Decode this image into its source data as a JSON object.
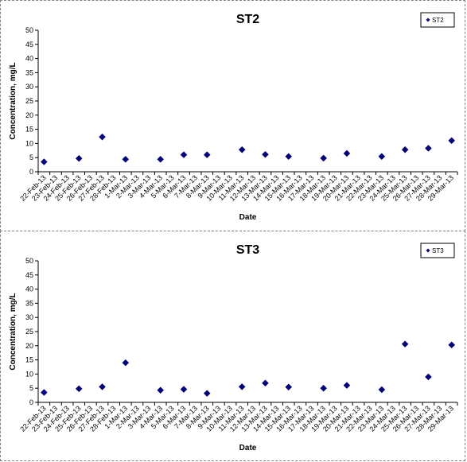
{
  "chart_data": [
    {
      "type": "scatter",
      "title": "ST2",
      "xlabel": "Date",
      "ylabel": "Concentration, mg/L",
      "ylim": [
        0,
        50
      ],
      "yticks": [
        "0",
        "5",
        "10",
        "15",
        "20",
        "25",
        "30",
        "35",
        "40",
        "45",
        "50"
      ],
      "grid": false,
      "legend_position": "top-right",
      "marker_color": "#000080",
      "categories": [
        "22-Feb-13",
        "23-Feb-13",
        "24-Feb-13",
        "25-Feb-13",
        "26-Feb-13",
        "27-Feb-13",
        "28-Feb-13",
        "1-Mar-13",
        "2-Mar-13",
        "3-Mar-13",
        "4-Mar-13",
        "5-Mar-13",
        "6-Mar-13",
        "7-Mar-13",
        "8-Mar-13",
        "9-Mar-13",
        "10-Mar-13",
        "11-Mar-13",
        "12-Mar-13",
        "13-Mar-13",
        "14-Mar-13",
        "15-Mar-13",
        "16-Mar-13",
        "17-Mar-13",
        "18-Mar-13",
        "19-Mar-13",
        "20-Mar-13",
        "21-Mar-13",
        "22-Mar-13",
        "23-Mar-13",
        "24-Mar-13",
        "25-Mar-13",
        "26-Mar-13",
        "27-Mar-13",
        "28-Mar-13",
        "29-Mar-13"
      ],
      "series": [
        {
          "name": "ST2",
          "points": [
            {
              "x": "22-Feb-13",
              "y": 3.5
            },
            {
              "x": "25-Feb-13",
              "y": 4.7
            },
            {
              "x": "27-Feb-13",
              "y": 12.3
            },
            {
              "x": "1-Mar-13",
              "y": 4.4
            },
            {
              "x": "4-Mar-13",
              "y": 4.4
            },
            {
              "x": "6-Mar-13",
              "y": 6.0
            },
            {
              "x": "8-Mar-13",
              "y": 6.0
            },
            {
              "x": "11-Mar-13",
              "y": 7.8
            },
            {
              "x": "13-Mar-13",
              "y": 6.1
            },
            {
              "x": "15-Mar-13",
              "y": 5.4
            },
            {
              "x": "18-Mar-13",
              "y": 4.8
            },
            {
              "x": "20-Mar-13",
              "y": 6.5
            },
            {
              "x": "23-Mar-13",
              "y": 5.4
            },
            {
              "x": "25-Mar-13",
              "y": 7.8
            },
            {
              "x": "27-Mar-13",
              "y": 8.3
            },
            {
              "x": "29-Mar-13",
              "y": 11.0
            }
          ]
        }
      ]
    },
    {
      "type": "scatter",
      "title": "ST3",
      "xlabel": "Date",
      "ylabel": "Concentration, mg/L",
      "ylim": [
        0,
        50
      ],
      "yticks": [
        "0",
        "5",
        "10",
        "15",
        "20",
        "25",
        "30",
        "35",
        "40",
        "45",
        "50"
      ],
      "grid": false,
      "legend_position": "top-right",
      "marker_color": "#000080",
      "categories": [
        "22-Feb-13",
        "23-Feb-13",
        "24-Feb-13",
        "25-Feb-13",
        "26-Feb-13",
        "27-Feb-13",
        "28-Feb-13",
        "1-Mar-13",
        "2-Mar-13",
        "3-Mar-13",
        "4-Mar-13",
        "5-Mar-13",
        "6-Mar-13",
        "7-Mar-13",
        "8-Mar-13",
        "9-Mar-13",
        "10-Mar-13",
        "11-Mar-13",
        "12-Mar-13",
        "13-Mar-13",
        "14-Mar-13",
        "15-Mar-13",
        "16-Mar-13",
        "17-Mar-13",
        "18-Mar-13",
        "19-Mar-13",
        "20-Mar-13",
        "21-Mar-13",
        "22-Mar-13",
        "23-Mar-13",
        "24-Mar-13",
        "25-Mar-13",
        "26-Mar-13",
        "27-Mar-13",
        "28-Mar-13",
        "29-Mar-13"
      ],
      "series": [
        {
          "name": "ST3",
          "points": [
            {
              "x": "22-Feb-13",
              "y": 3.5
            },
            {
              "x": "25-Feb-13",
              "y": 4.8
            },
            {
              "x": "27-Feb-13",
              "y": 5.5
            },
            {
              "x": "1-Mar-13",
              "y": 14.0
            },
            {
              "x": "4-Mar-13",
              "y": 4.3
            },
            {
              "x": "6-Mar-13",
              "y": 4.6
            },
            {
              "x": "8-Mar-13",
              "y": 3.2
            },
            {
              "x": "11-Mar-13",
              "y": 5.5
            },
            {
              "x": "13-Mar-13",
              "y": 6.8
            },
            {
              "x": "15-Mar-13",
              "y": 5.4
            },
            {
              "x": "18-Mar-13",
              "y": 5.0
            },
            {
              "x": "20-Mar-13",
              "y": 6.0
            },
            {
              "x": "23-Mar-13",
              "y": 4.5
            },
            {
              "x": "25-Mar-13",
              "y": 20.6
            },
            {
              "x": "27-Mar-13",
              "y": 9.0
            },
            {
              "x": "29-Mar-13",
              "y": 20.3
            }
          ]
        }
      ]
    }
  ]
}
